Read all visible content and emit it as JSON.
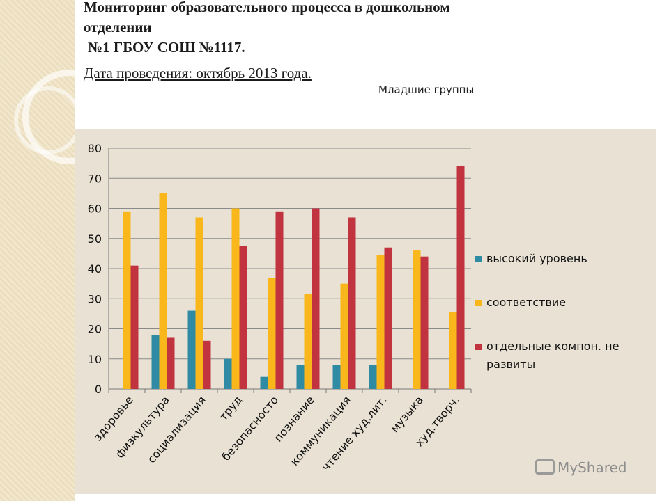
{
  "header": {
    "title_line1": "Мониторинг образовательного процесса в дошкольном",
    "title_line2": "отделении",
    "title_line3": "№1 ГБОУ СОШ №1117.",
    "date": "Дата проведения: октябрь 2013 года.",
    "subtitle": "Младшие группы"
  },
  "watermark": "MyShared",
  "chart_data": {
    "type": "bar",
    "title": "Младшие группы",
    "categories": [
      "здоровье",
      "физкультура",
      "социализация",
      "труд",
      "безопасносто",
      "познание",
      "коммуникация",
      "чтение худ.лит.",
      "музыка",
      "худ.творч."
    ],
    "series": [
      {
        "name": "высокий уровень",
        "color": "#2e8ba3",
        "values": [
          null,
          18,
          26,
          10,
          4,
          8,
          8,
          8,
          null,
          null
        ]
      },
      {
        "name": "соответствие",
        "color": "#f9b71c",
        "values": [
          59,
          65,
          57,
          60,
          37,
          31.5,
          35,
          44.5,
          46,
          25.5
        ]
      },
      {
        "name": "отдельные компон. не развиты",
        "color": "#c0333f",
        "values": [
          41,
          17,
          16,
          47.5,
          59,
          60,
          57,
          47,
          44,
          74
        ]
      }
    ],
    "ylim": [
      0,
      80
    ],
    "yticks": [
      0,
      10,
      20,
      30,
      40,
      50,
      60,
      70,
      80
    ],
    "legend_position": "right",
    "grid": true
  }
}
